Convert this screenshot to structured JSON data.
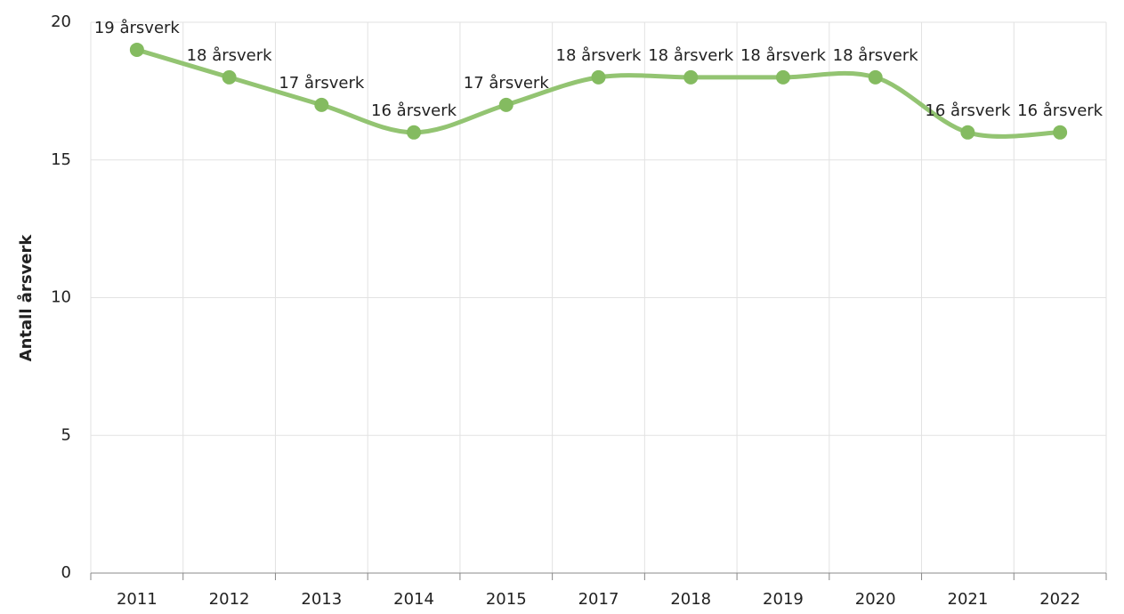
{
  "chart_data": {
    "type": "line",
    "y_axis_label": "Antall årsverk",
    "categories": [
      "2011",
      "2012",
      "2013",
      "2014",
      "2015",
      "2017",
      "2018",
      "2019",
      "2020",
      "2021",
      "2022"
    ],
    "series": [
      {
        "name": "Antall årsverk",
        "color": "#93c472",
        "values": [
          19,
          18,
          17,
          16,
          17,
          18,
          18,
          18,
          18,
          16,
          16
        ],
        "value_labels": [
          "19 årsverk",
          "18 årsverk",
          "17 årsverk",
          "16 årsverk",
          "17 årsverk",
          "18 årsverk",
          "18 årsverk",
          "18 årsverk",
          "18 årsverk",
          "16 årsverk",
          "16 årsverk"
        ]
      }
    ],
    "ylim": [
      0,
      20
    ],
    "yticks": [
      0,
      5,
      10,
      15,
      20
    ],
    "grid": true
  }
}
